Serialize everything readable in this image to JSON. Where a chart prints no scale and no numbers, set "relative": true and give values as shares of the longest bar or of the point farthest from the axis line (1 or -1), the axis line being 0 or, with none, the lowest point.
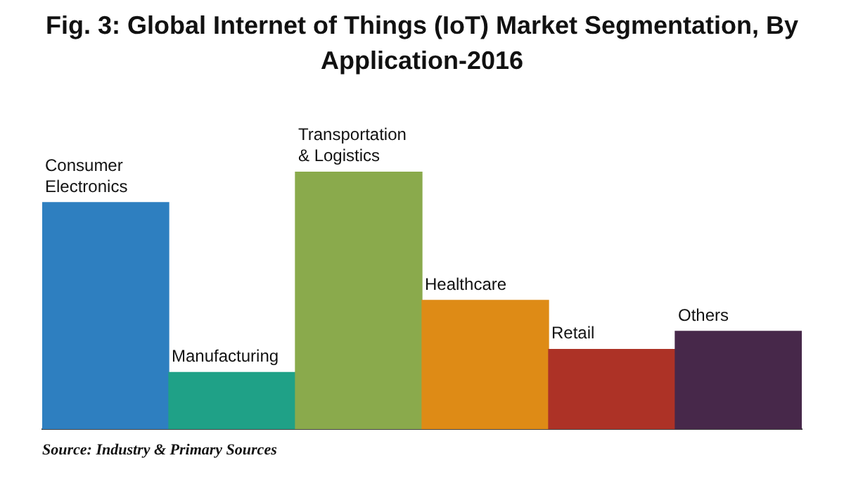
{
  "chart_data": {
    "type": "bar",
    "title": "Fig. 3: Global Internet of Things (IoT) Market Segmentation, By Application-2016",
    "relative": true,
    "categories": [
      "Consumer Electronics",
      "Manufacturing",
      "Transportation & Logistics",
      "Healthcare",
      "Retail",
      "Others"
    ],
    "values": [
      0.88,
      0.22,
      1,
      0.5,
      0.31,
      0.38
    ],
    "colors": [
      "#2e7fc0",
      "#1fa187",
      "#8aaa4c",
      "#de8b16",
      "#ad3226",
      "#47284a"
    ],
    "grid": false,
    "legend": false,
    "annotations": [
      "Source: Industry & Primary Sources"
    ]
  }
}
